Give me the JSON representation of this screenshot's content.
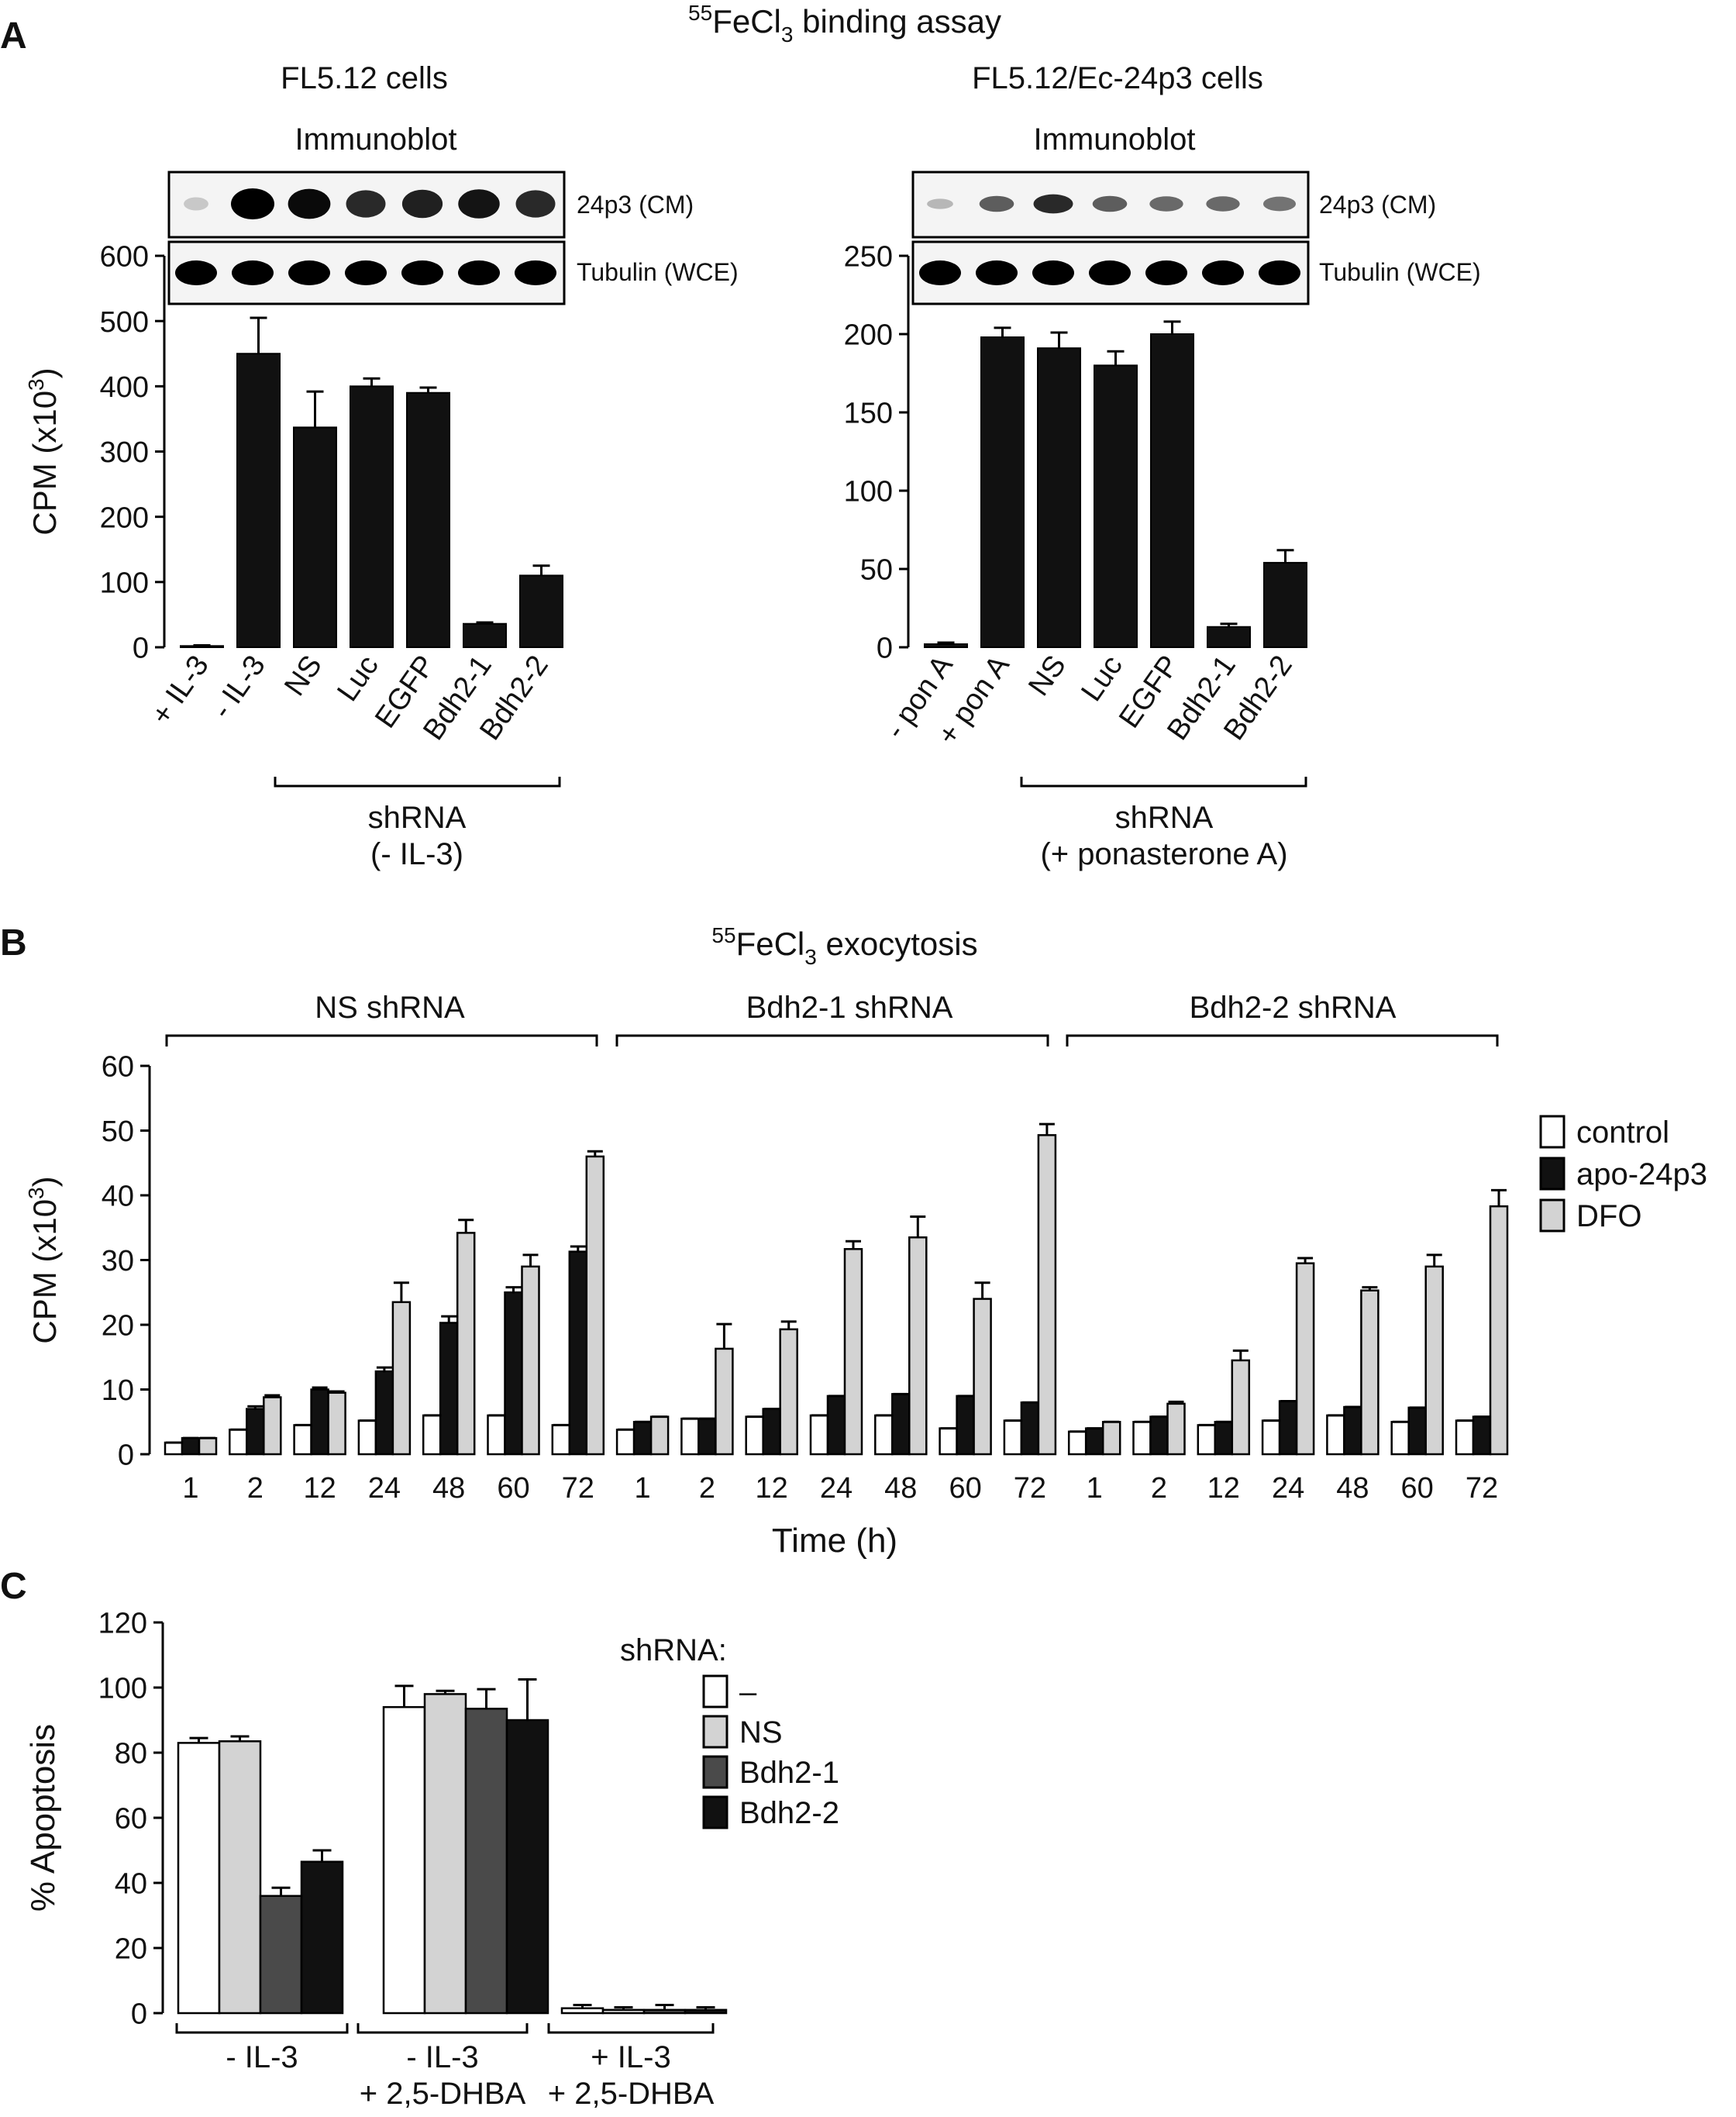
{
  "panelA": {
    "letter": "A",
    "title_sup": "55",
    "title_base": "FeCl",
    "title_sub": "3",
    "title_rest": " binding assay",
    "left": {
      "cells_title": "FL5.12 cells",
      "blot_label": "Immunoblot",
      "band1_label": "24p3 (CM)",
      "band2_label": "Tubulin (WCE)",
      "band1_intensity": [
        0.04,
        1.0,
        0.95,
        0.8,
        0.85,
        0.9,
        0.8
      ],
      "bracket_label_1": "shRNA",
      "bracket_label_2": "(- IL-3)"
    },
    "right": {
      "cells_title": "FL5.12/Ec-24p3 cells",
      "blot_label": "Immunoblot",
      "band1_label": "24p3 (CM)",
      "band2_label": "Tubulin (WCE)",
      "band1_intensity": [
        0.12,
        0.55,
        0.8,
        0.55,
        0.5,
        0.5,
        0.45
      ],
      "bracket_label_1": "shRNA",
      "bracket_label_2": "(+ ponasterone A)"
    }
  },
  "panelB": {
    "letter": "B",
    "title_sup": "55",
    "title_base": "FeCl",
    "title_sub": "3",
    "title_rest": " exocytosis",
    "groups": [
      "NS shRNA",
      "Bdh2-1 shRNA",
      "Bdh2-2 shRNA"
    ]
  },
  "panelC": {
    "letter": "C",
    "legend_title": "shRNA:"
  },
  "colors": {
    "black": "#111111",
    "light_gray": "#d3d3d3",
    "dark_gray": "#4a4a4a",
    "white": "#ffffff"
  },
  "chart_data": [
    {
      "id": "A-left",
      "type": "bar",
      "ylabel": "CPM (x10",
      "ylabel_sup": "3",
      "ylabel_end": ")",
      "ylim": [
        0,
        600
      ],
      "yticks": [
        0,
        100,
        200,
        300,
        400,
        500,
        600
      ],
      "categories": [
        "+ IL-3",
        "- IL-3",
        "NS",
        "Luc",
        "EGFP",
        "Bdh2-1",
        "Bdh2-2"
      ],
      "values": [
        2,
        450,
        337,
        400,
        390,
        36,
        110
      ],
      "errors": [
        1,
        55,
        55,
        12,
        8,
        2,
        15
      ]
    },
    {
      "id": "A-right",
      "type": "bar",
      "ylabel": "",
      "ylim": [
        0,
        250
      ],
      "yticks": [
        0,
        50,
        100,
        150,
        200,
        250
      ],
      "categories": [
        "- pon A",
        "+ pon A",
        "NS",
        "Luc",
        "EGFP",
        "Bdh2-1",
        "Bdh2-2"
      ],
      "values": [
        2,
        198,
        191,
        180,
        200,
        13,
        54
      ],
      "errors": [
        1,
        6,
        10,
        9,
        8,
        2,
        8
      ]
    },
    {
      "id": "B",
      "type": "bar",
      "xlabel": "Time (h)",
      "ylabel": "CPM (x10",
      "ylabel_sup": "3",
      "ylabel_end": ")",
      "ylim": [
        0,
        60
      ],
      "yticks": [
        0,
        10,
        20,
        30,
        40,
        50,
        60
      ],
      "categories": [
        "1",
        "2",
        "12",
        "24",
        "48",
        "60",
        "72",
        "1",
        "2",
        "12",
        "24",
        "48",
        "60",
        "72",
        "1",
        "2",
        "12",
        "24",
        "48",
        "60",
        "72"
      ],
      "series": [
        {
          "name": "control",
          "color": "#ffffff",
          "values": [
            1.8,
            3.8,
            4.5,
            5.2,
            6.0,
            6.0,
            4.5,
            3.8,
            5.5,
            5.8,
            6.0,
            6.0,
            4.0,
            5.2,
            3.5,
            5.0,
            4.5,
            5.2,
            6.0,
            5.0,
            5.2
          ],
          "errors": [
            0,
            0,
            0,
            0,
            0,
            0,
            0,
            0,
            0,
            0,
            0,
            0,
            0,
            0,
            0,
            0,
            0,
            0,
            0,
            0,
            0
          ]
        },
        {
          "name": "apo-24p3",
          "color": "#111111",
          "values": [
            2.5,
            7.0,
            10.0,
            12.8,
            20.3,
            25.0,
            31.3,
            5.0,
            5.5,
            7.0,
            9.0,
            9.3,
            9.0,
            8.0,
            4.0,
            5.8,
            5.0,
            8.2,
            7.3,
            7.2,
            5.8
          ],
          "errors": [
            0,
            0.4,
            0.3,
            0.6,
            1.0,
            0.8,
            0.8,
            0,
            0,
            0,
            0,
            0,
            0,
            0,
            0,
            0,
            0,
            0,
            0,
            0,
            0
          ]
        },
        {
          "name": "DFO",
          "color": "#d3d3d3",
          "values": [
            2.5,
            8.8,
            9.5,
            23.5,
            34.2,
            29.0,
            46.0,
            5.8,
            16.3,
            19.3,
            31.7,
            33.5,
            24.0,
            49.3,
            5.0,
            7.8,
            14.5,
            29.5,
            25.3,
            29.0,
            38.3
          ],
          "errors": [
            0,
            0.3,
            0.2,
            3.0,
            2.0,
            1.8,
            0.8,
            0,
            3.8,
            1.2,
            1.2,
            3.2,
            2.5,
            1.7,
            0,
            0.3,
            1.5,
            0.8,
            0.5,
            1.8,
            2.5
          ]
        }
      ]
    },
    {
      "id": "C",
      "type": "bar",
      "ylabel": "% Apoptosis",
      "ylim": [
        0,
        120
      ],
      "yticks": [
        0,
        20,
        40,
        60,
        80,
        100,
        120
      ],
      "groups": [
        {
          "line1": "- IL-3",
          "line2": ""
        },
        {
          "line1": "- IL-3",
          "line2": "+ 2,5-DHBA"
        },
        {
          "line1": "+ IL-3",
          "line2": "+ 2,5-DHBA"
        }
      ],
      "series": [
        {
          "name": "–",
          "color": "#ffffff",
          "values": [
            83,
            94,
            1.5
          ],
          "errors": [
            1.5,
            6.5,
            1.0
          ]
        },
        {
          "name": "NS",
          "color": "#d3d3d3",
          "values": [
            83.5,
            98,
            1.0
          ],
          "errors": [
            1.5,
            1.0,
            0.8
          ]
        },
        {
          "name": "Bdh2-1",
          "color": "#4a4a4a",
          "values": [
            36,
            93.5,
            1.0
          ],
          "errors": [
            2.5,
            6.0,
            1.5
          ]
        },
        {
          "name": "Bdh2-2",
          "color": "#111111",
          "values": [
            46.5,
            90,
            1.0
          ],
          "errors": [
            3.5,
            12.5,
            0.8
          ]
        }
      ]
    }
  ]
}
